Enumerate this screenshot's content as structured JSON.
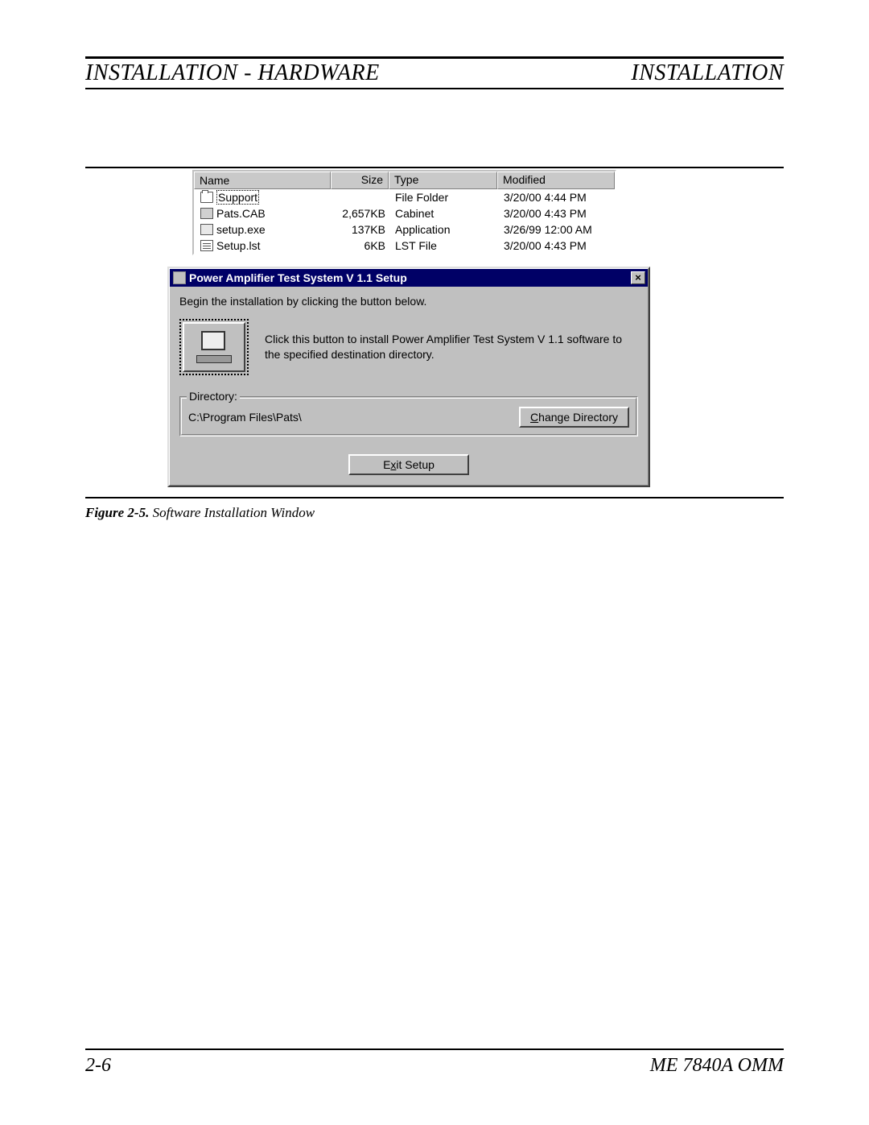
{
  "header": {
    "left": "INSTALLATION - HARDWARE",
    "right": "INSTALLATION"
  },
  "filelist": {
    "columns": {
      "name": "Name",
      "size": "Size",
      "type": "Type",
      "modified": "Modified"
    },
    "col_widths": {
      "name": 170,
      "size": 72,
      "type": 135,
      "modified": 150
    },
    "rows": [
      {
        "icon": "folder",
        "name": "Support",
        "size": "",
        "type": "File Folder",
        "modified": "3/20/00 4:44 PM"
      },
      {
        "icon": "cab",
        "name": "Pats.CAB",
        "size": "2,657KB",
        "type": "Cabinet",
        "modified": "3/20/00 4:43 PM"
      },
      {
        "icon": "exe",
        "name": "setup.exe",
        "size": "137KB",
        "type": "Application",
        "modified": "3/26/99 12:00 AM"
      },
      {
        "icon": "lst",
        "name": "Setup.lst",
        "size": "6KB",
        "type": "LST File",
        "modified": "3/20/00 4:43 PM"
      }
    ]
  },
  "dialog": {
    "title": "Power Amplifier Test System V 1.1 Setup",
    "begin_text": "Begin the installation by clicking the button below.",
    "install_text": "Click this button to install Power Amplifier Test System V 1.1 software to the specified destination directory.",
    "group_label": "Directory:",
    "dir_path": "C:\\Program Files\\Pats\\",
    "change_dir_pre": "",
    "change_dir_u": "C",
    "change_dir_post": "hange Directory",
    "exit_pre": "E",
    "exit_u": "x",
    "exit_post": "it Setup",
    "close_glyph": "×",
    "colors": {
      "titlebar_bg": "#000066",
      "face": "#c0c0c0"
    }
  },
  "caption": {
    "label": "Figure 2-5.",
    "text": "Software Installation Window"
  },
  "footer": {
    "left": "2-6",
    "right": "ME 7840A OMM"
  }
}
